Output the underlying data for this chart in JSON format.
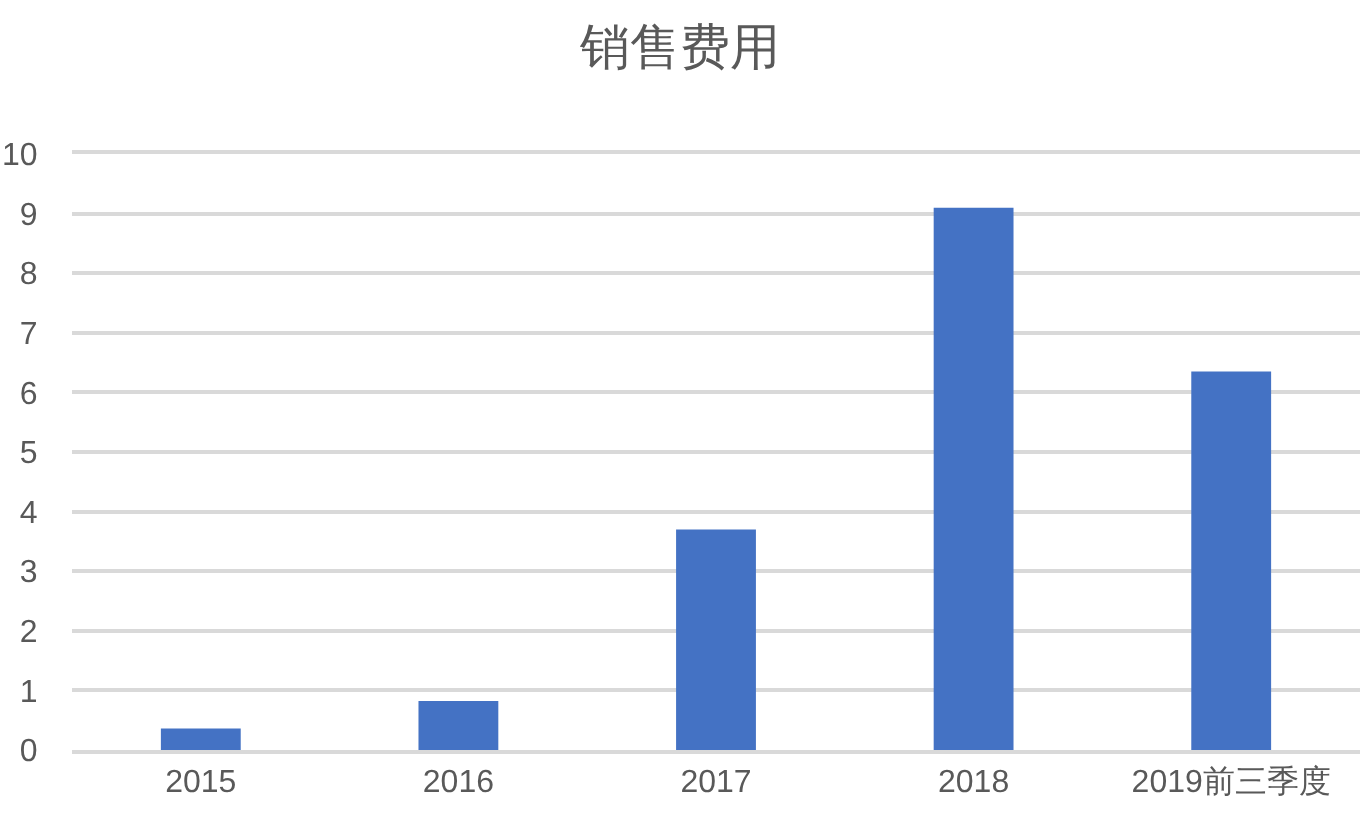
{
  "chart_data": {
    "type": "bar",
    "title": "销售费用",
    "categories": [
      "2015",
      "2016",
      "2017",
      "2018",
      "2019前三季度"
    ],
    "values": [
      0.36,
      0.82,
      3.7,
      9.1,
      6.35
    ],
    "color": "#4472c4",
    "ylim": [
      0,
      10
    ],
    "yticks": [
      0,
      1,
      2,
      3,
      4,
      5,
      6,
      7,
      8,
      9,
      10
    ],
    "grid": "y"
  }
}
